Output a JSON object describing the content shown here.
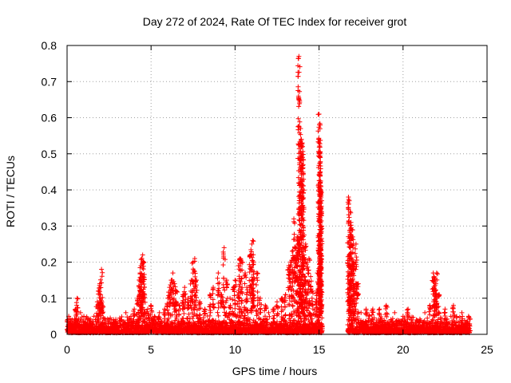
{
  "chart_data": {
    "type": "scatter",
    "title": "Day 272 of 2024, Rate Of TEC Index for receiver grot",
    "xlabel": "GPS time / hours",
    "ylabel": "ROTI / TECUs",
    "xlim": [
      0,
      25
    ],
    "ylim": [
      0,
      0.8
    ],
    "xticks": [
      0,
      5,
      10,
      15,
      20,
      25
    ],
    "yticks": [
      0,
      0.1,
      0.2,
      0.3,
      0.4,
      0.5,
      0.6,
      0.7,
      0.8
    ],
    "xtick_labels": [
      "0",
      "5",
      "10",
      "15",
      "20",
      "25"
    ],
    "ytick_labels": [
      "0",
      "0.1",
      "0.2",
      "0.3",
      "0.4",
      "0.5",
      "0.6",
      "0.7",
      "0.8"
    ],
    "grid": true,
    "marker": "+",
    "series": [
      {
        "name": "ROTI",
        "color": "#ff0000",
        "baseline_range": [
          0.0,
          24.0
        ],
        "data_gap": [
          15.2,
          16.7
        ],
        "points": [
          [
            0.1,
            0.05
          ],
          [
            0.3,
            0.04
          ],
          [
            0.5,
            0.07
          ],
          [
            0.6,
            0.1
          ],
          [
            0.8,
            0.06
          ],
          [
            1.0,
            0.05
          ],
          [
            1.3,
            0.04
          ],
          [
            1.6,
            0.05
          ],
          [
            1.8,
            0.09
          ],
          [
            1.9,
            0.12
          ],
          [
            1.95,
            0.14
          ],
          [
            2.0,
            0.11
          ],
          [
            2.05,
            0.18
          ],
          [
            2.1,
            0.08
          ],
          [
            2.5,
            0.04
          ],
          [
            3.0,
            0.03
          ],
          [
            3.5,
            0.06
          ],
          [
            3.8,
            0.05
          ],
          [
            4.0,
            0.07
          ],
          [
            4.2,
            0.1
          ],
          [
            4.3,
            0.15
          ],
          [
            4.35,
            0.17
          ],
          [
            4.4,
            0.19
          ],
          [
            4.45,
            0.21
          ],
          [
            4.5,
            0.22
          ],
          [
            4.55,
            0.2
          ],
          [
            4.6,
            0.13
          ],
          [
            4.8,
            0.07
          ],
          [
            5.0,
            0.08
          ],
          [
            5.2,
            0.05
          ],
          [
            5.5,
            0.06
          ],
          [
            5.8,
            0.07
          ],
          [
            6.0,
            0.1
          ],
          [
            6.1,
            0.13
          ],
          [
            6.2,
            0.15
          ],
          [
            6.3,
            0.17
          ],
          [
            6.4,
            0.14
          ],
          [
            6.5,
            0.12
          ],
          [
            6.7,
            0.08
          ],
          [
            6.9,
            0.11
          ],
          [
            7.0,
            0.13
          ],
          [
            7.2,
            0.1
          ],
          [
            7.4,
            0.15
          ],
          [
            7.5,
            0.2
          ],
          [
            7.6,
            0.21
          ],
          [
            7.7,
            0.15
          ],
          [
            7.9,
            0.09
          ],
          [
            8.2,
            0.07
          ],
          [
            8.5,
            0.11
          ],
          [
            8.7,
            0.13
          ],
          [
            9.0,
            0.17
          ],
          [
            9.2,
            0.11
          ],
          [
            9.35,
            0.24
          ],
          [
            9.5,
            0.15
          ],
          [
            9.7,
            0.1
          ],
          [
            9.9,
            0.13
          ],
          [
            10.0,
            0.15
          ],
          [
            10.2,
            0.19
          ],
          [
            10.3,
            0.21
          ],
          [
            10.4,
            0.2
          ],
          [
            10.6,
            0.17
          ],
          [
            10.7,
            0.13
          ],
          [
            10.9,
            0.22
          ],
          [
            11.0,
            0.25
          ],
          [
            11.05,
            0.26
          ],
          [
            11.1,
            0.2
          ],
          [
            11.3,
            0.17
          ],
          [
            11.5,
            0.1
          ],
          [
            11.8,
            0.08
          ],
          [
            12.0,
            0.06
          ],
          [
            12.3,
            0.07
          ],
          [
            12.5,
            0.09
          ],
          [
            12.8,
            0.1
          ],
          [
            13.0,
            0.11
          ],
          [
            13.2,
            0.19
          ],
          [
            13.3,
            0.2
          ],
          [
            13.4,
            0.23
          ],
          [
            13.5,
            0.32
          ],
          [
            13.6,
            0.24
          ],
          [
            13.7,
            0.27
          ],
          [
            13.75,
            0.26
          ],
          [
            13.8,
            0.77
          ],
          [
            13.85,
            0.42
          ],
          [
            13.9,
            0.57
          ],
          [
            13.95,
            0.54
          ],
          [
            14.0,
            0.53
          ],
          [
            14.02,
            0.52
          ],
          [
            14.05,
            0.47
          ],
          [
            14.1,
            0.22
          ],
          [
            14.2,
            0.25
          ],
          [
            14.3,
            0.2
          ],
          [
            14.4,
            0.21
          ],
          [
            14.5,
            0.16
          ],
          [
            14.6,
            0.12
          ],
          [
            14.8,
            0.09
          ],
          [
            14.9,
            0.17
          ],
          [
            15.0,
            0.61
          ],
          [
            15.02,
            0.58
          ],
          [
            15.04,
            0.5
          ],
          [
            15.06,
            0.49
          ],
          [
            15.07,
            0.45
          ],
          [
            15.08,
            0.42
          ],
          [
            15.09,
            0.4
          ],
          [
            15.1,
            0.39
          ],
          [
            15.12,
            0.38
          ],
          [
            15.05,
            0.31
          ],
          [
            16.75,
            0.38
          ],
          [
            16.8,
            0.37
          ],
          [
            16.85,
            0.34
          ],
          [
            16.9,
            0.31
          ],
          [
            16.95,
            0.29
          ],
          [
            17.0,
            0.27
          ],
          [
            17.05,
            0.2
          ],
          [
            17.1,
            0.18
          ],
          [
            16.9,
            0.15
          ],
          [
            17.2,
            0.25
          ],
          [
            17.3,
            0.14
          ],
          [
            16.8,
            0.08
          ],
          [
            17.5,
            0.06
          ],
          [
            17.8,
            0.07
          ],
          [
            18.2,
            0.07
          ],
          [
            18.6,
            0.07
          ],
          [
            19.0,
            0.08
          ],
          [
            19.5,
            0.06
          ],
          [
            20.0,
            0.05
          ],
          [
            20.3,
            0.07
          ],
          [
            20.8,
            0.04
          ],
          [
            21.3,
            0.06
          ],
          [
            21.6,
            0.08
          ],
          [
            21.8,
            0.17
          ],
          [
            21.85,
            0.16
          ],
          [
            21.9,
            0.15
          ],
          [
            21.95,
            0.14
          ],
          [
            22.0,
            0.17
          ],
          [
            22.1,
            0.11
          ],
          [
            22.5,
            0.07
          ],
          [
            23.0,
            0.08
          ],
          [
            23.5,
            0.06
          ],
          [
            23.9,
            0.05
          ]
        ]
      }
    ]
  }
}
